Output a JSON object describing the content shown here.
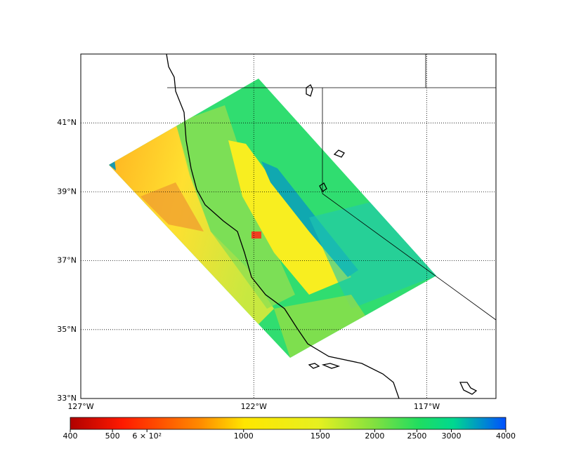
{
  "chart_data": {
    "type": "map",
    "xlim": [
      -127,
      -115
    ],
    "xticks": [
      {
        "value": -127,
        "label": "127°W"
      },
      {
        "value": -122,
        "label": "122°W"
      },
      {
        "value": -117,
        "label": "117°W"
      }
    ],
    "ylim": [
      33,
      43
    ],
    "yticks": [
      {
        "value": 33,
        "label": "33°N"
      },
      {
        "value": 35,
        "label": "35°N"
      },
      {
        "value": 37,
        "label": "37°N"
      },
      {
        "value": 39,
        "label": "39°N"
      },
      {
        "value": 41,
        "label": "41°N"
      }
    ],
    "grid": true,
    "colorbar": {
      "scale": "log",
      "lim": [
        400,
        4000
      ],
      "ticks": [
        400,
        500,
        {
          "value": 600,
          "label": "6 × 10²"
        },
        1000,
        1500,
        2000,
        2500,
        3000,
        4000
      ]
    }
  }
}
